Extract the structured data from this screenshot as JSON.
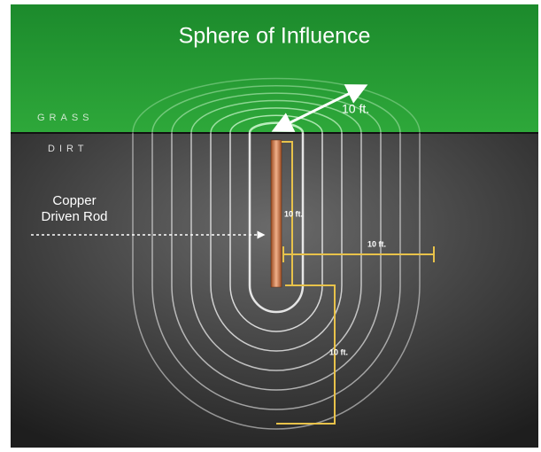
{
  "title": "Sphere of Influence",
  "labels": {
    "grass": "GRASS",
    "dirt": "DIRT",
    "rod": [
      "Copper",
      "Driven Rod"
    ]
  },
  "dimensions": [
    "10 ft.",
    "10 ft.",
    "10 ft.",
    "10 ft."
  ]
}
